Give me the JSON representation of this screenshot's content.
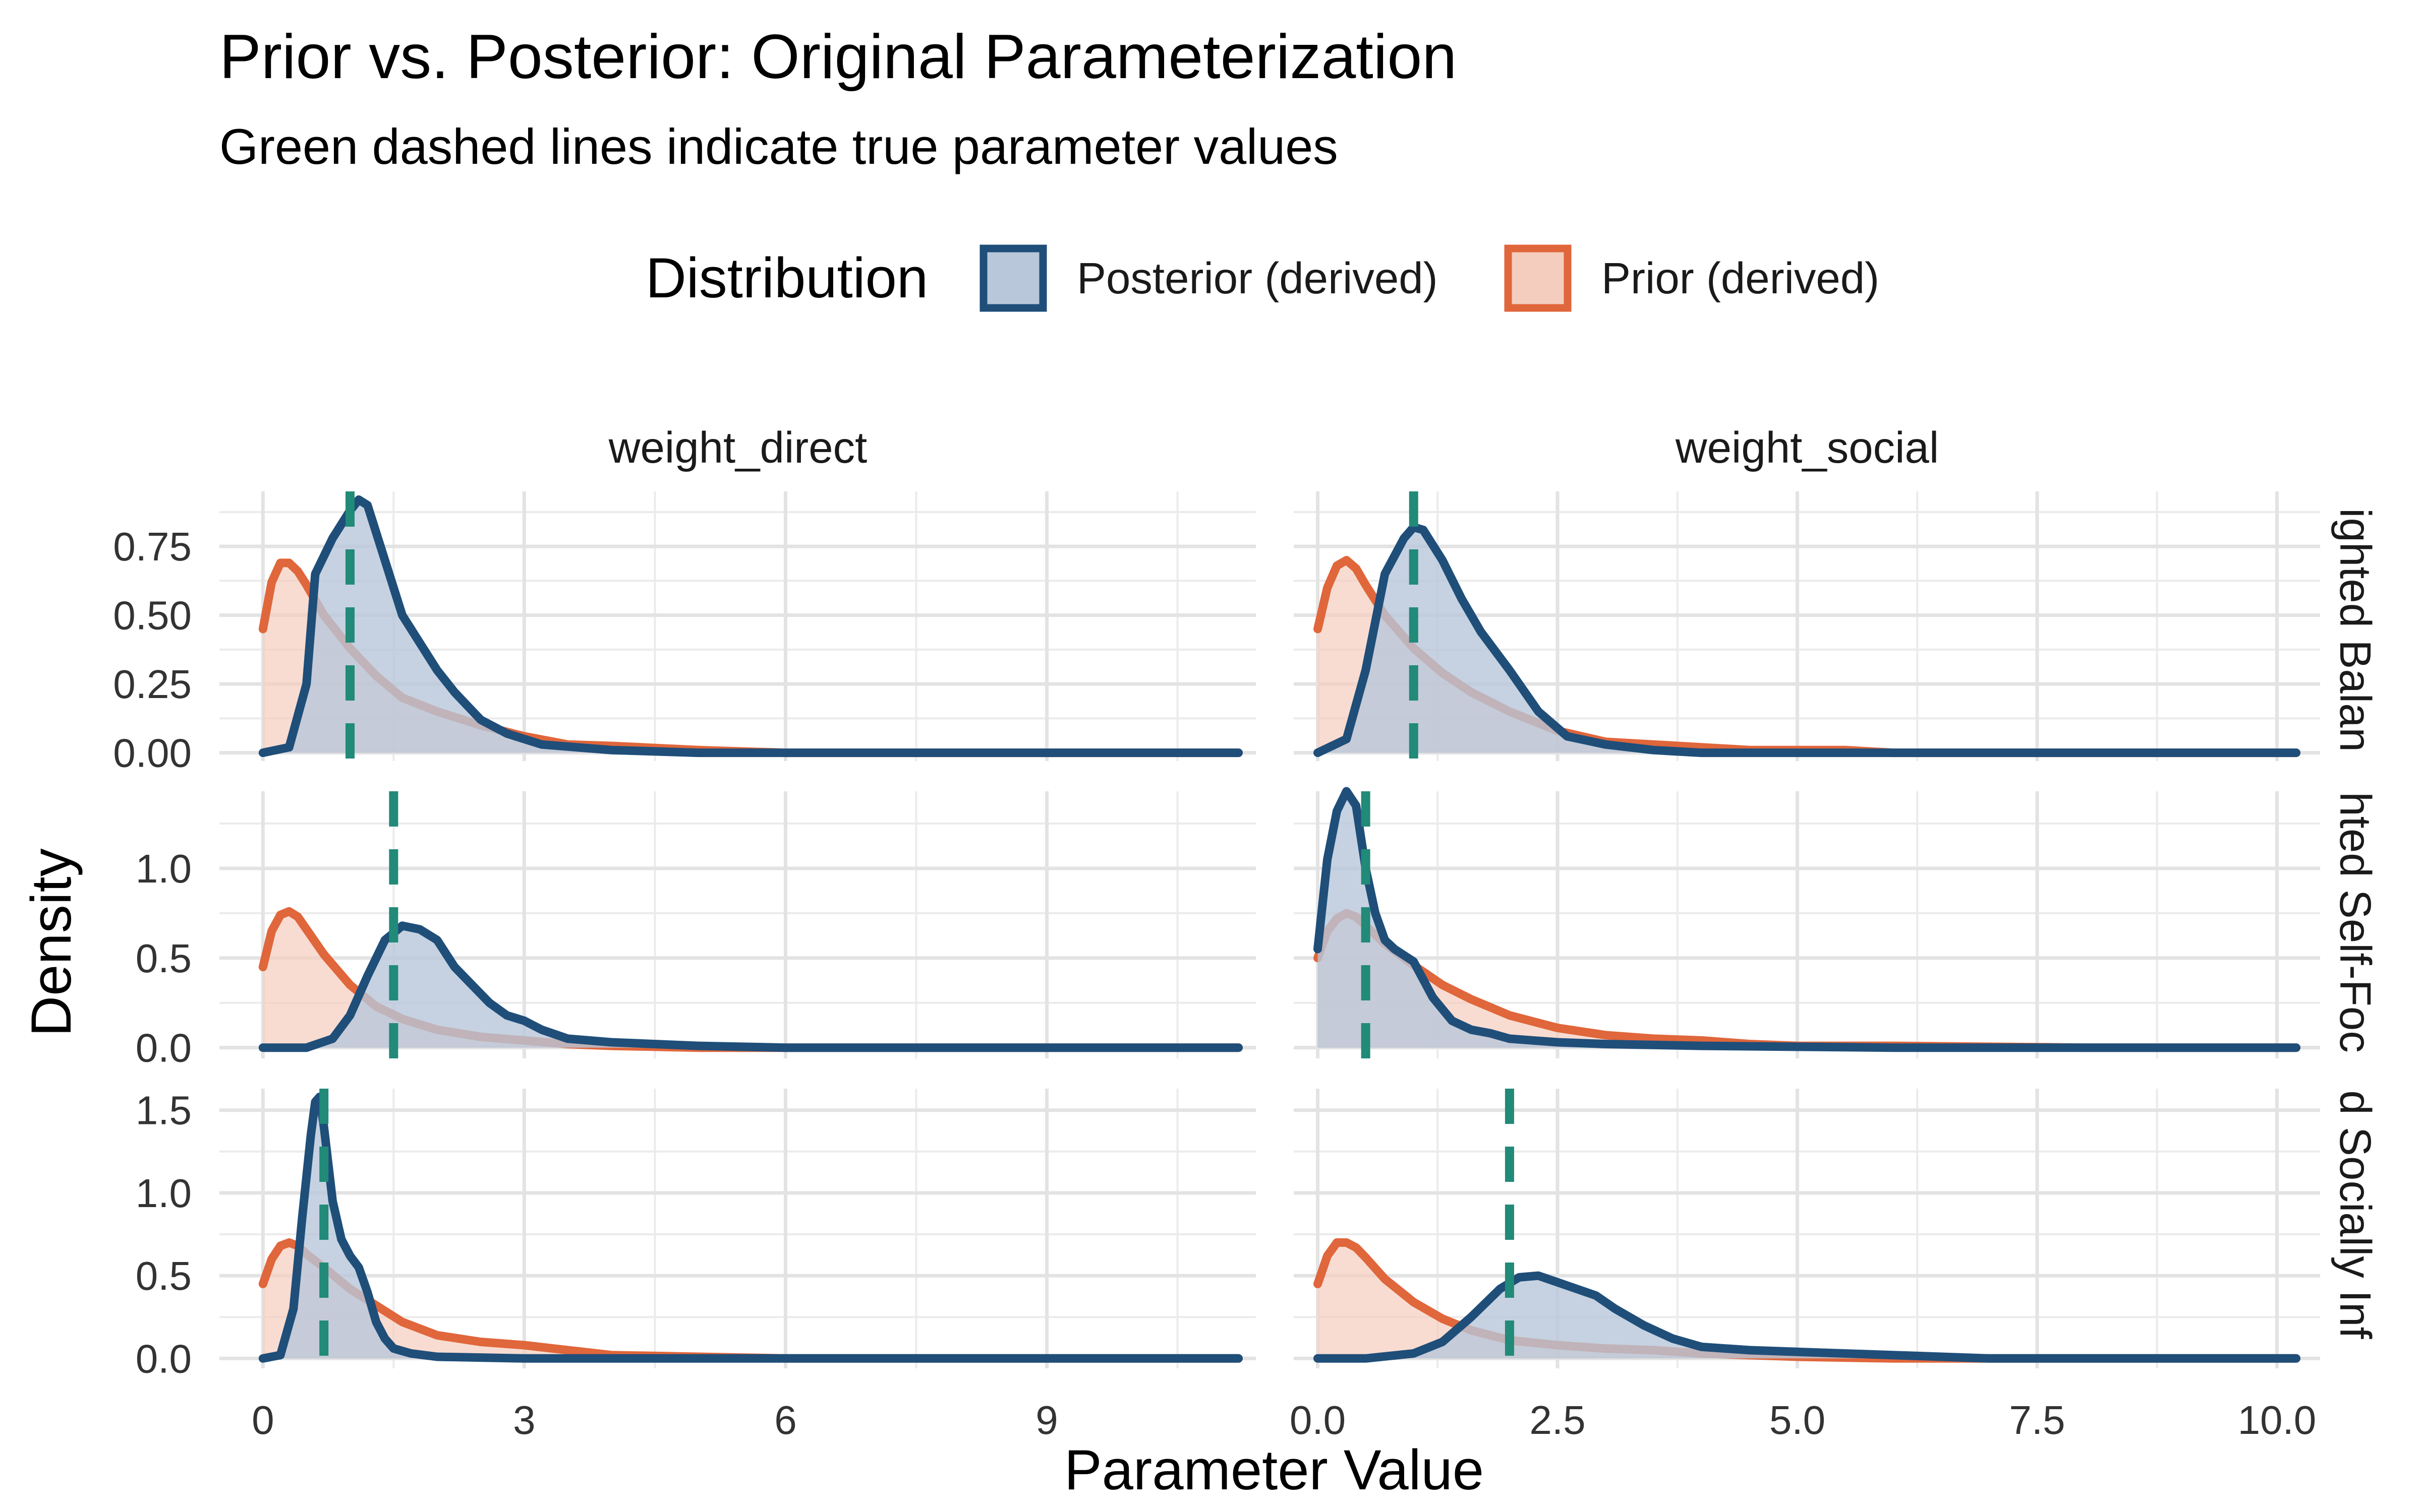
{
  "chart_data": {
    "type": "area",
    "title": "Prior vs. Posterior: Original Parameterization",
    "subtitle": "Green dashed lines indicate true parameter values",
    "xlabel": "Parameter Value",
    "ylabel": "Density",
    "legend": {
      "title": "Distribution",
      "placement": "top",
      "entries": [
        {
          "label": "Posterior (derived)",
          "color": "#1f4e79",
          "fill": "#b8c7d9"
        },
        {
          "label": "Prior (derived)",
          "color": "#e0663b",
          "fill": "#f5cdbe"
        }
      ]
    },
    "true_value_line_color": "#218a78",
    "grid": true,
    "columns": [
      {
        "label": "weight_direct",
        "xlim": [
          -0.5,
          11.4
        ],
        "xticks": [
          0,
          3,
          6,
          9
        ],
        "xtick_labels": [
          "0",
          "3",
          "6",
          "9"
        ]
      },
      {
        "label": "weight_social",
        "xlim": [
          -0.25,
          10.45
        ],
        "xticks": [
          0,
          2.5,
          5,
          7.5,
          10
        ],
        "xtick_labels": [
          "0.0",
          "2.5",
          "5.0",
          "7.5",
          "10.0"
        ]
      }
    ],
    "rows": [
      {
        "label": "ighted Balan",
        "ylim": [
          -0.03,
          0.95
        ],
        "yticks": [
          0,
          0.25,
          0.5,
          0.75
        ],
        "ytick_labels": [
          "0.00",
          "0.25",
          "0.50",
          "0.75"
        ]
      },
      {
        "label": "hted Self-Foc",
        "ylim": [
          -0.06,
          1.43
        ],
        "yticks": [
          0,
          0.5,
          1.0
        ],
        "ytick_labels": [
          "0.0",
          "0.5",
          "1.0"
        ]
      },
      {
        "label": "d Socially Inf",
        "ylim": [
          -0.06,
          1.63
        ],
        "yticks": [
          0,
          0.5,
          1.0,
          1.5
        ],
        "ytick_labels": [
          "0.0",
          "0.5",
          "1.0",
          "1.5"
        ]
      }
    ],
    "panels": [
      {
        "row": 0,
        "col": 0,
        "true_value": 1.0,
        "series": [
          {
            "name": "Posterior (derived)",
            "x": [
              0.0,
              0.3,
              0.5,
              0.6,
              0.8,
              1.0,
              1.1,
              1.2,
              1.4,
              1.6,
              1.8,
              2.0,
              2.2,
              2.5,
              2.8,
              3.2,
              3.6,
              4.0,
              5.0,
              6.0,
              8.0,
              11.2
            ],
            "y": [
              0.0,
              0.02,
              0.25,
              0.65,
              0.78,
              0.88,
              0.92,
              0.9,
              0.7,
              0.5,
              0.4,
              0.3,
              0.22,
              0.12,
              0.07,
              0.03,
              0.02,
              0.01,
              0.0,
              0.0,
              0.0,
              0.0
            ]
          },
          {
            "name": "Prior (derived)",
            "x": [
              0.0,
              0.1,
              0.2,
              0.3,
              0.4,
              0.5,
              0.7,
              1.0,
              1.3,
              1.6,
              2.0,
              2.5,
              3.0,
              3.5,
              4.0,
              5.0,
              6.0,
              8.0,
              11.2
            ],
            "y": [
              0.45,
              0.62,
              0.69,
              0.69,
              0.66,
              0.61,
              0.5,
              0.38,
              0.28,
              0.2,
              0.15,
              0.1,
              0.06,
              0.03,
              0.025,
              0.01,
              0.0,
              0.0,
              0.0
            ]
          }
        ]
      },
      {
        "row": 0,
        "col": 1,
        "true_value": 1.0,
        "series": [
          {
            "name": "Posterior (derived)",
            "x": [
              0.0,
              0.3,
              0.5,
              0.7,
              0.9,
              1.0,
              1.1,
              1.3,
              1.5,
              1.7,
              2.0,
              2.3,
              2.6,
              3.0,
              3.5,
              4.0,
              5.0,
              6.0,
              8.0,
              10.2
            ],
            "y": [
              0.0,
              0.05,
              0.3,
              0.65,
              0.78,
              0.82,
              0.81,
              0.7,
              0.56,
              0.44,
              0.3,
              0.15,
              0.06,
              0.03,
              0.01,
              0.0,
              0.0,
              0.0,
              0.0,
              0.0
            ]
          },
          {
            "name": "Prior (derived)",
            "x": [
              0.0,
              0.1,
              0.2,
              0.3,
              0.4,
              0.5,
              0.7,
              1.0,
              1.3,
              1.6,
              2.0,
              2.5,
              3.0,
              3.5,
              4.0,
              4.5,
              5.0,
              5.5,
              6.0,
              8.0,
              10.2
            ],
            "y": [
              0.45,
              0.6,
              0.68,
              0.7,
              0.67,
              0.61,
              0.5,
              0.38,
              0.29,
              0.22,
              0.15,
              0.08,
              0.04,
              0.03,
              0.02,
              0.01,
              0.01,
              0.01,
              0.0,
              0.0,
              0.0
            ]
          }
        ]
      },
      {
        "row": 1,
        "col": 0,
        "true_value": 1.5,
        "series": [
          {
            "name": "Posterior (derived)",
            "x": [
              0.0,
              0.5,
              0.8,
              1.0,
              1.2,
              1.4,
              1.6,
              1.8,
              2.0,
              2.2,
              2.4,
              2.6,
              2.8,
              3.0,
              3.2,
              3.5,
              4.0,
              5.0,
              6.0,
              8.0,
              11.2
            ],
            "y": [
              0.0,
              0.0,
              0.05,
              0.18,
              0.4,
              0.6,
              0.68,
              0.66,
              0.6,
              0.45,
              0.35,
              0.25,
              0.18,
              0.15,
              0.1,
              0.05,
              0.03,
              0.01,
              0.0,
              0.0,
              0.0
            ]
          },
          {
            "name": "Prior (derived)",
            "x": [
              0.0,
              0.1,
              0.2,
              0.3,
              0.4,
              0.5,
              0.7,
              1.0,
              1.3,
              1.6,
              2.0,
              2.5,
              3.0,
              3.5,
              4.0,
              5.0,
              6.0,
              8.0,
              11.2
            ],
            "y": [
              0.45,
              0.65,
              0.74,
              0.76,
              0.73,
              0.66,
              0.52,
              0.35,
              0.23,
              0.16,
              0.1,
              0.06,
              0.04,
              0.02,
              0.01,
              0.0,
              0.0,
              0.0,
              0.0
            ]
          }
        ]
      },
      {
        "row": 1,
        "col": 1,
        "true_value": 0.5,
        "series": [
          {
            "name": "Posterior (derived)",
            "x": [
              0.0,
              0.1,
              0.2,
              0.3,
              0.4,
              0.5,
              0.6,
              0.7,
              0.8,
              1.0,
              1.2,
              1.4,
              1.6,
              1.8,
              2.0,
              2.5,
              3.0,
              4.0,
              6.0,
              8.0,
              10.2
            ],
            "y": [
              0.55,
              1.05,
              1.32,
              1.43,
              1.35,
              1.0,
              0.75,
              0.6,
              0.55,
              0.48,
              0.28,
              0.15,
              0.1,
              0.08,
              0.05,
              0.03,
              0.02,
              0.01,
              0.0,
              0.0,
              0.0
            ]
          },
          {
            "name": "Prior (derived)",
            "x": [
              0.0,
              0.1,
              0.2,
              0.3,
              0.4,
              0.5,
              0.7,
              1.0,
              1.3,
              1.6,
              2.0,
              2.5,
              3.0,
              3.5,
              4.0,
              4.5,
              5.0,
              6.0,
              8.0,
              10.2
            ],
            "y": [
              0.5,
              0.65,
              0.72,
              0.75,
              0.73,
              0.68,
              0.58,
              0.46,
              0.35,
              0.27,
              0.18,
              0.11,
              0.07,
              0.05,
              0.04,
              0.02,
              0.01,
              0.01,
              0.0,
              0.0
            ]
          }
        ]
      },
      {
        "row": 2,
        "col": 0,
        "true_value": 0.7,
        "series": [
          {
            "name": "Posterior (derived)",
            "x": [
              0.0,
              0.2,
              0.35,
              0.45,
              0.55,
              0.6,
              0.65,
              0.7,
              0.8,
              0.9,
              1.0,
              1.1,
              1.2,
              1.3,
              1.4,
              1.5,
              1.7,
              2.0,
              3.0,
              5.0,
              11.2
            ],
            "y": [
              0.0,
              0.02,
              0.3,
              0.85,
              1.35,
              1.55,
              1.58,
              1.4,
              0.95,
              0.72,
              0.62,
              0.55,
              0.4,
              0.22,
              0.12,
              0.06,
              0.03,
              0.01,
              0.0,
              0.0,
              0.0
            ]
          },
          {
            "name": "Prior (derived)",
            "x": [
              0.0,
              0.1,
              0.2,
              0.3,
              0.4,
              0.5,
              0.7,
              1.0,
              1.3,
              1.6,
              2.0,
              2.5,
              3.0,
              3.5,
              4.0,
              5.0,
              6.0,
              8.0,
              11.2
            ],
            "y": [
              0.45,
              0.6,
              0.68,
              0.7,
              0.68,
              0.63,
              0.55,
              0.42,
              0.32,
              0.22,
              0.14,
              0.1,
              0.08,
              0.05,
              0.02,
              0.01,
              0.0,
              0.0,
              0.0
            ]
          }
        ]
      },
      {
        "row": 2,
        "col": 1,
        "true_value": 2.0,
        "series": [
          {
            "name": "Posterior (derived)",
            "x": [
              0.0,
              0.5,
              1.0,
              1.3,
              1.6,
              1.9,
              2.1,
              2.3,
              2.5,
              2.7,
              2.9,
              3.1,
              3.4,
              3.7,
              4.0,
              4.5,
              5.0,
              6.0,
              7.0,
              8.5,
              10.2
            ],
            "y": [
              0.0,
              0.0,
              0.03,
              0.1,
              0.25,
              0.42,
              0.49,
              0.5,
              0.46,
              0.42,
              0.38,
              0.3,
              0.2,
              0.12,
              0.07,
              0.05,
              0.04,
              0.02,
              0.0,
              0.0,
              0.0
            ]
          },
          {
            "name": "Prior (derived)",
            "x": [
              0.0,
              0.1,
              0.2,
              0.3,
              0.4,
              0.5,
              0.7,
              1.0,
              1.3,
              1.6,
              2.0,
              2.5,
              3.0,
              3.5,
              4.0,
              5.0,
              6.0,
              8.0,
              10.2
            ],
            "y": [
              0.45,
              0.62,
              0.7,
              0.7,
              0.67,
              0.61,
              0.48,
              0.34,
              0.24,
              0.17,
              0.11,
              0.08,
              0.06,
              0.05,
              0.03,
              0.01,
              0.0,
              0.0,
              0.0
            ]
          }
        ]
      }
    ]
  }
}
